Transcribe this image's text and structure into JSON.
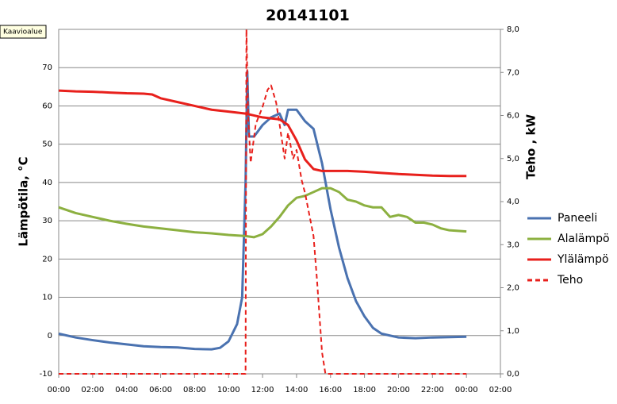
{
  "tooltip": "Kaavioalue",
  "chart_data": {
    "type": "line",
    "title": "20141101",
    "y_label": "Lämpötila, °C",
    "y2_label": "Teho , kW",
    "xlim": [
      0,
      26
    ],
    "xticks": [
      {
        "value": 0,
        "label": "00:00"
      },
      {
        "value": 2,
        "label": "02:00"
      },
      {
        "value": 4,
        "label": "04:00"
      },
      {
        "value": 6,
        "label": "06:00"
      },
      {
        "value": 8,
        "label": "08:00"
      },
      {
        "value": 10,
        "label": "10:00"
      },
      {
        "value": 12,
        "label": "12:00"
      },
      {
        "value": 14,
        "label": "14:00"
      },
      {
        "value": 16,
        "label": "16:00"
      },
      {
        "value": 18,
        "label": "18:00"
      },
      {
        "value": 20,
        "label": "20:00"
      },
      {
        "value": 22,
        "label": "22:00"
      },
      {
        "value": 24,
        "label": "00:00"
      },
      {
        "value": 26,
        "label": "02:00"
      }
    ],
    "ylim": [
      -10,
      80
    ],
    "yticks": [
      -10,
      0,
      10,
      20,
      30,
      40,
      50,
      60,
      70
    ],
    "y2lim": [
      0,
      8
    ],
    "y2ticks": [
      {
        "value": 0,
        "label": "0,0"
      },
      {
        "value": 1,
        "label": "1,0"
      },
      {
        "value": 2,
        "label": "2,0"
      },
      {
        "value": 3,
        "label": "3,0"
      },
      {
        "value": 4,
        "label": "4,0"
      },
      {
        "value": 5,
        "label": "5,0"
      },
      {
        "value": 6,
        "label": "6,0"
      },
      {
        "value": 7,
        "label": "7,0"
      },
      {
        "value": 8,
        "label": "8,0"
      }
    ],
    "grid": true,
    "series": [
      {
        "name": "Paneeli",
        "color": "#4a72b0",
        "x": [
          0,
          1,
          2,
          3,
          4,
          5,
          6,
          7,
          8,
          9,
          9.5,
          10,
          10.5,
          10.8,
          11,
          11.1,
          11.2,
          11.5,
          12,
          12.5,
          13,
          13.3,
          13.5,
          14,
          14.5,
          15,
          15.5,
          16,
          16.5,
          17,
          17.5,
          18,
          18.5,
          19,
          20,
          21,
          22,
          23,
          24
        ],
        "values": [
          0.5,
          -0.5,
          -1.2,
          -1.8,
          -2.3,
          -2.8,
          -3,
          -3.1,
          -3.5,
          -3.6,
          -3.2,
          -1.5,
          3,
          10,
          40,
          69,
          52,
          52,
          55,
          57,
          58,
          55,
          59,
          59,
          56,
          54,
          45,
          33,
          23,
          15,
          9,
          5,
          2,
          0.5,
          -0.5,
          -0.7,
          -0.5,
          -0.4,
          -0.3
        ]
      },
      {
        "name": "Alalämpö",
        "color": "#8cb040",
        "x": [
          0,
          1,
          2,
          3,
          4,
          5,
          6,
          7,
          8,
          9,
          10,
          11,
          11.5,
          12,
          12.5,
          13,
          13.5,
          14,
          14.5,
          15,
          15.5,
          16,
          16.5,
          17,
          17.5,
          18,
          18.5,
          19,
          19.5,
          20,
          20.5,
          21,
          21.5,
          22,
          22.5,
          23,
          24
        ],
        "values": [
          33.5,
          32,
          31,
          30,
          29.2,
          28.5,
          28,
          27.5,
          27,
          26.7,
          26.3,
          26,
          25.7,
          26.5,
          28.5,
          31,
          34,
          36,
          36.5,
          37.5,
          38.5,
          38.5,
          37.5,
          35.5,
          35,
          34,
          33.5,
          33.5,
          31,
          31.5,
          31,
          29.5,
          29.5,
          29,
          28,
          27.5,
          27.2
        ]
      },
      {
        "name": "Ylälämpö",
        "color": "#e8201c",
        "x": [
          0,
          1,
          2,
          3,
          4,
          5,
          5.5,
          6,
          7,
          8,
          9,
          10,
          11,
          12,
          13,
          13.5,
          14,
          14.5,
          15,
          15.5,
          16,
          17,
          18,
          19,
          20,
          21,
          22,
          23,
          24
        ],
        "values": [
          64,
          63.8,
          63.7,
          63.5,
          63.3,
          63.2,
          63,
          62,
          61,
          60,
          59,
          58.5,
          58,
          57,
          56.5,
          55,
          51,
          46,
          43.5,
          43,
          43,
          43,
          42.8,
          42.5,
          42.2,
          42,
          41.8,
          41.7,
          41.7
        ]
      },
      {
        "name": "Teho",
        "color": "#e8201c",
        "axis": "y2",
        "dashed": true,
        "x": [
          0,
          11,
          11.05,
          11.15,
          11.3,
          11.6,
          12,
          12.3,
          12.5,
          12.8,
          13,
          13.3,
          13.5,
          13.8,
          14,
          14.3,
          14.5,
          15,
          15.2,
          15.5,
          15.7,
          24
        ],
        "values": [
          0,
          0,
          8,
          6,
          4.9,
          5.8,
          6.2,
          6.6,
          6.7,
          6.3,
          5.8,
          5,
          5.6,
          5,
          5.2,
          4.5,
          4.2,
          3.2,
          2.2,
          0.5,
          0,
          0
        ]
      }
    ]
  }
}
